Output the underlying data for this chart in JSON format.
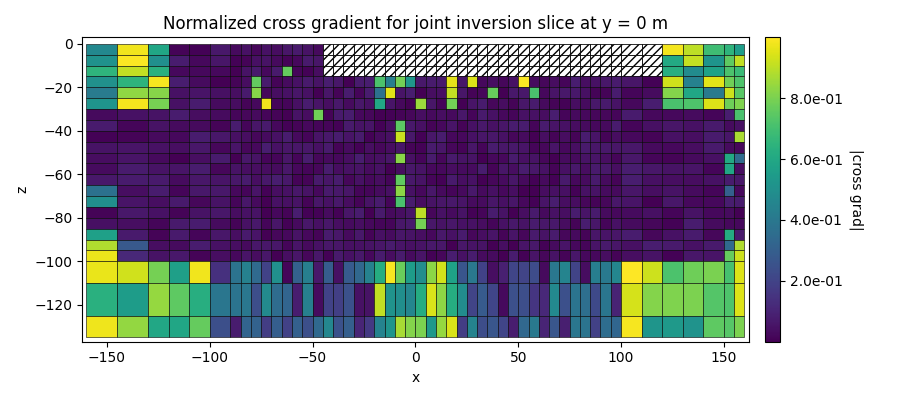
{
  "title": "Normalized cross gradient for joint inversion slice at y = 0 m",
  "xlabel": "x",
  "ylabel": "z",
  "colorbar_label": "|cross grad|",
  "xlim": [
    -162,
    162
  ],
  "ylim": [
    -137,
    3
  ],
  "cmap": "viridis",
  "vmin": 0.0,
  "vmax": 1.0,
  "xticks": [
    -150,
    -100,
    -50,
    0,
    50,
    100,
    150
  ],
  "yticks": [
    0,
    -20,
    -40,
    -60,
    -80,
    -100,
    -120
  ],
  "colorbar_ticks": [
    0.2,
    0.4,
    0.6,
    0.8
  ],
  "colorbar_ticklabels": [
    "2.0e-01",
    "4.0e-01",
    "6.0e-01",
    "8.0e-01"
  ],
  "x_edges": [
    -160,
    -145,
    -130,
    -120,
    -110,
    -100,
    -90,
    -85,
    -80,
    -75,
    -70,
    -65,
    -60,
    -55,
    -50,
    -45,
    -40,
    -35,
    -30,
    -25,
    -20,
    -15,
    -10,
    -5,
    0,
    5,
    10,
    15,
    20,
    25,
    30,
    35,
    40,
    45,
    50,
    55,
    60,
    65,
    70,
    75,
    80,
    85,
    90,
    95,
    100,
    110,
    120,
    130,
    140,
    150,
    155,
    160
  ],
  "z_edges": [
    0,
    -5,
    -10,
    -15,
    -20,
    -25,
    -30,
    -35,
    -40,
    -45,
    -50,
    -55,
    -60,
    -65,
    -70,
    -75,
    -80,
    -85,
    -90,
    -95,
    -100,
    -110,
    -125,
    -135
  ]
}
